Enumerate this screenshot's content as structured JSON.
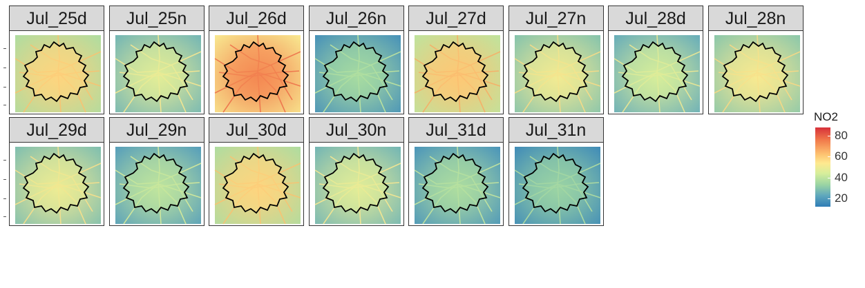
{
  "chart_data": {
    "type": "heatmap",
    "panels": [
      {
        "label": "Jul_25d",
        "level": 52
      },
      {
        "label": "Jul_25n",
        "level": 42
      },
      {
        "label": "Jul_26d",
        "level": 65
      },
      {
        "label": "Jul_26n",
        "level": 32
      },
      {
        "label": "Jul_27d",
        "level": 55
      },
      {
        "label": "Jul_27n",
        "level": 45
      },
      {
        "label": "Jul_28d",
        "level": 40
      },
      {
        "label": "Jul_28n",
        "level": 46
      },
      {
        "label": "Jul_29d",
        "level": 44
      },
      {
        "label": "Jul_29n",
        "level": 36
      },
      {
        "label": "Jul_30d",
        "level": 52
      },
      {
        "label": "Jul_30n",
        "level": 42
      },
      {
        "label": "Jul_31d",
        "level": 33
      },
      {
        "label": "Jul_31n",
        "level": 30
      }
    ],
    "legend": {
      "title": "NO2",
      "ticks": [
        "80",
        "60",
        "40",
        "20"
      ],
      "tick_values": [
        80,
        60,
        40,
        20
      ],
      "range": [
        12,
        88
      ],
      "colors": [
        "#d7303a",
        "#f17a4b",
        "#fdbf6f",
        "#fee98f",
        "#d6ee9b",
        "#9bd5a3",
        "#5fa7bd",
        "#2f7db6"
      ]
    }
  }
}
